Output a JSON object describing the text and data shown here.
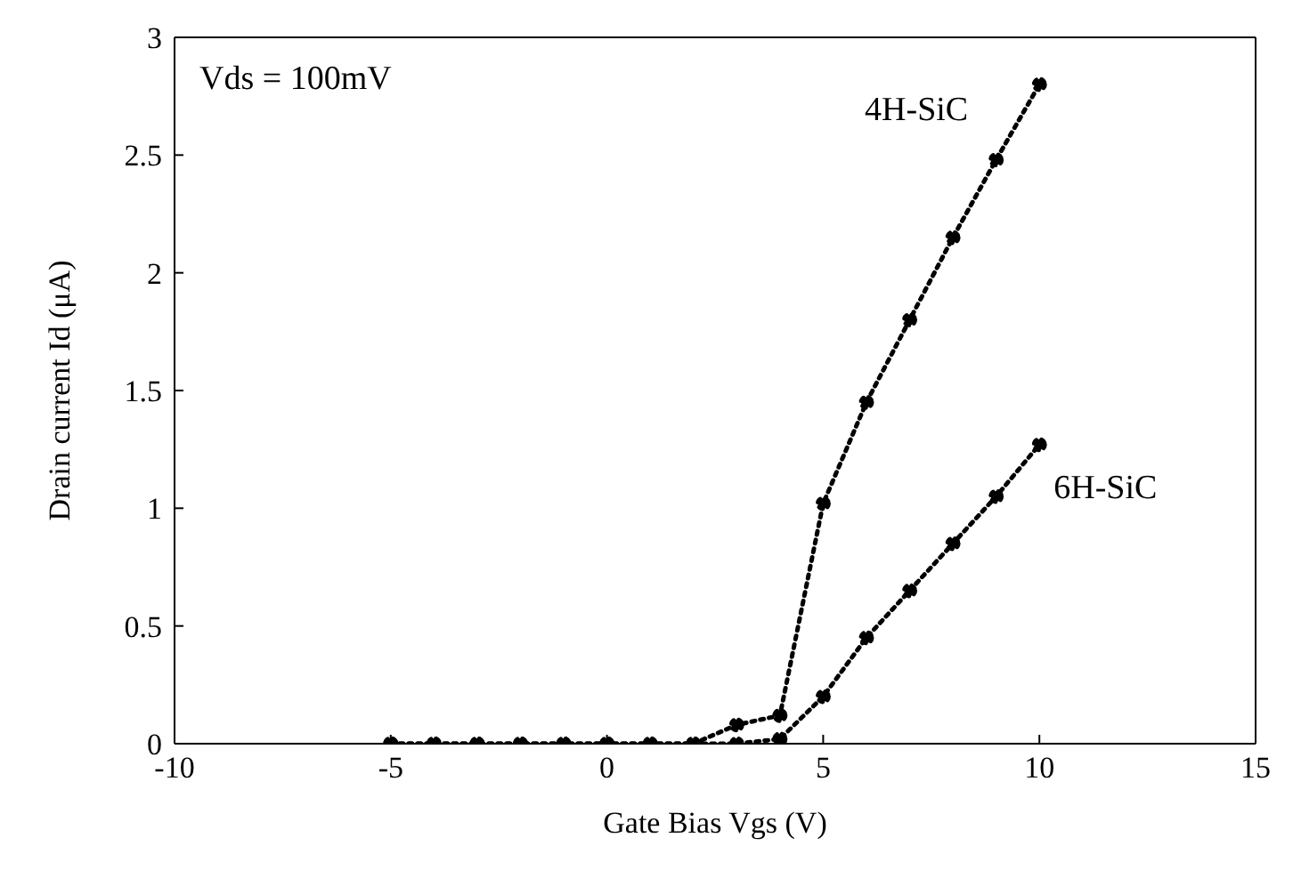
{
  "chart_data": {
    "type": "line",
    "xlabel": "Gate Bias Vgs (V)",
    "ylabel": "Drain current Id (μA)",
    "annotations": [
      "Vds = 100mV"
    ],
    "x": [
      -5,
      -4,
      -3,
      -2,
      -1,
      0,
      1,
      2,
      3,
      4,
      5,
      6,
      7,
      8,
      9,
      10
    ],
    "series": [
      {
        "name": "4H-SiC",
        "color": "#000000",
        "values": [
          0,
          0,
          0,
          0,
          0,
          0,
          0,
          0,
          0.08,
          0.12,
          1.02,
          1.45,
          1.8,
          2.15,
          2.48,
          2.8
        ]
      },
      {
        "name": "6H-SiC",
        "color": "#000000",
        "values": [
          0,
          0,
          0,
          0,
          0,
          0,
          0,
          0,
          0,
          0.02,
          0.2,
          0.45,
          0.65,
          0.85,
          1.05,
          1.27
        ]
      }
    ],
    "xlim": [
      -10,
      15
    ],
    "xticks": [
      -10,
      -5,
      0,
      5,
      10,
      15
    ],
    "ylim": [
      0,
      3
    ],
    "yticks": [
      0,
      0.5,
      1,
      1.5,
      2,
      2.5,
      3
    ],
    "grid": false,
    "legend": false,
    "marker": "circle",
    "line_style": "dotted"
  }
}
